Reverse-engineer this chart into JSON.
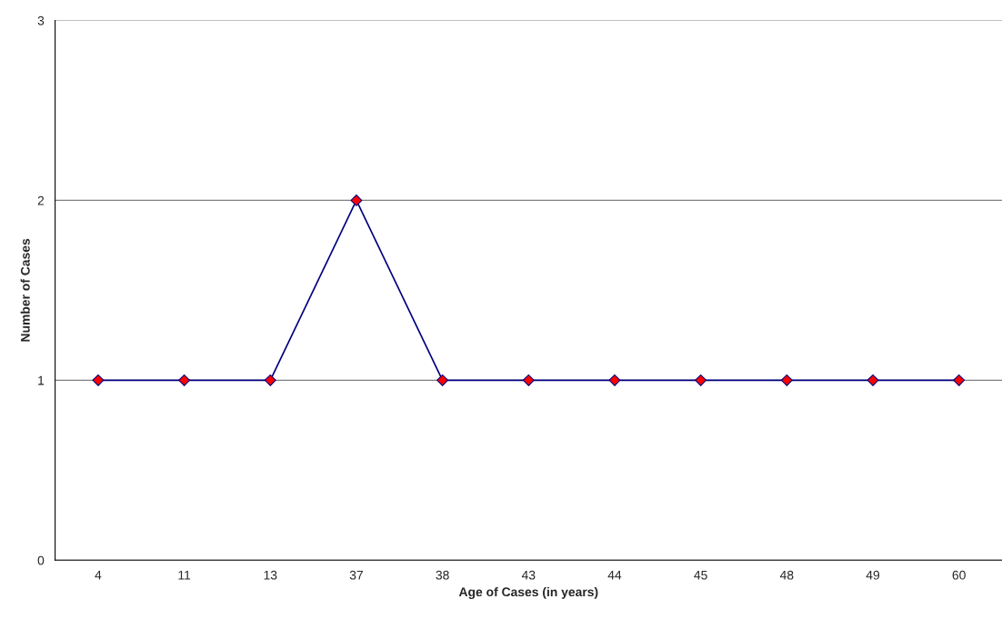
{
  "chart_data": {
    "type": "line",
    "xlabel": "Age of Cases (in years)",
    "ylabel": "Number of Cases",
    "categories": [
      "4",
      "11",
      "13",
      "37",
      "38",
      "43",
      "44",
      "45",
      "48",
      "49",
      "60"
    ],
    "series": [
      {
        "color": "#000080",
        "values": [
          1,
          1,
          1,
          2,
          1,
          1,
          1,
          1,
          1,
          1,
          1
        ]
      }
    ],
    "ylim": [
      0,
      3
    ],
    "yticks": [
      0,
      1,
      2,
      3
    ],
    "grid": "y",
    "marker": "diamond",
    "line_style": "solid"
  }
}
